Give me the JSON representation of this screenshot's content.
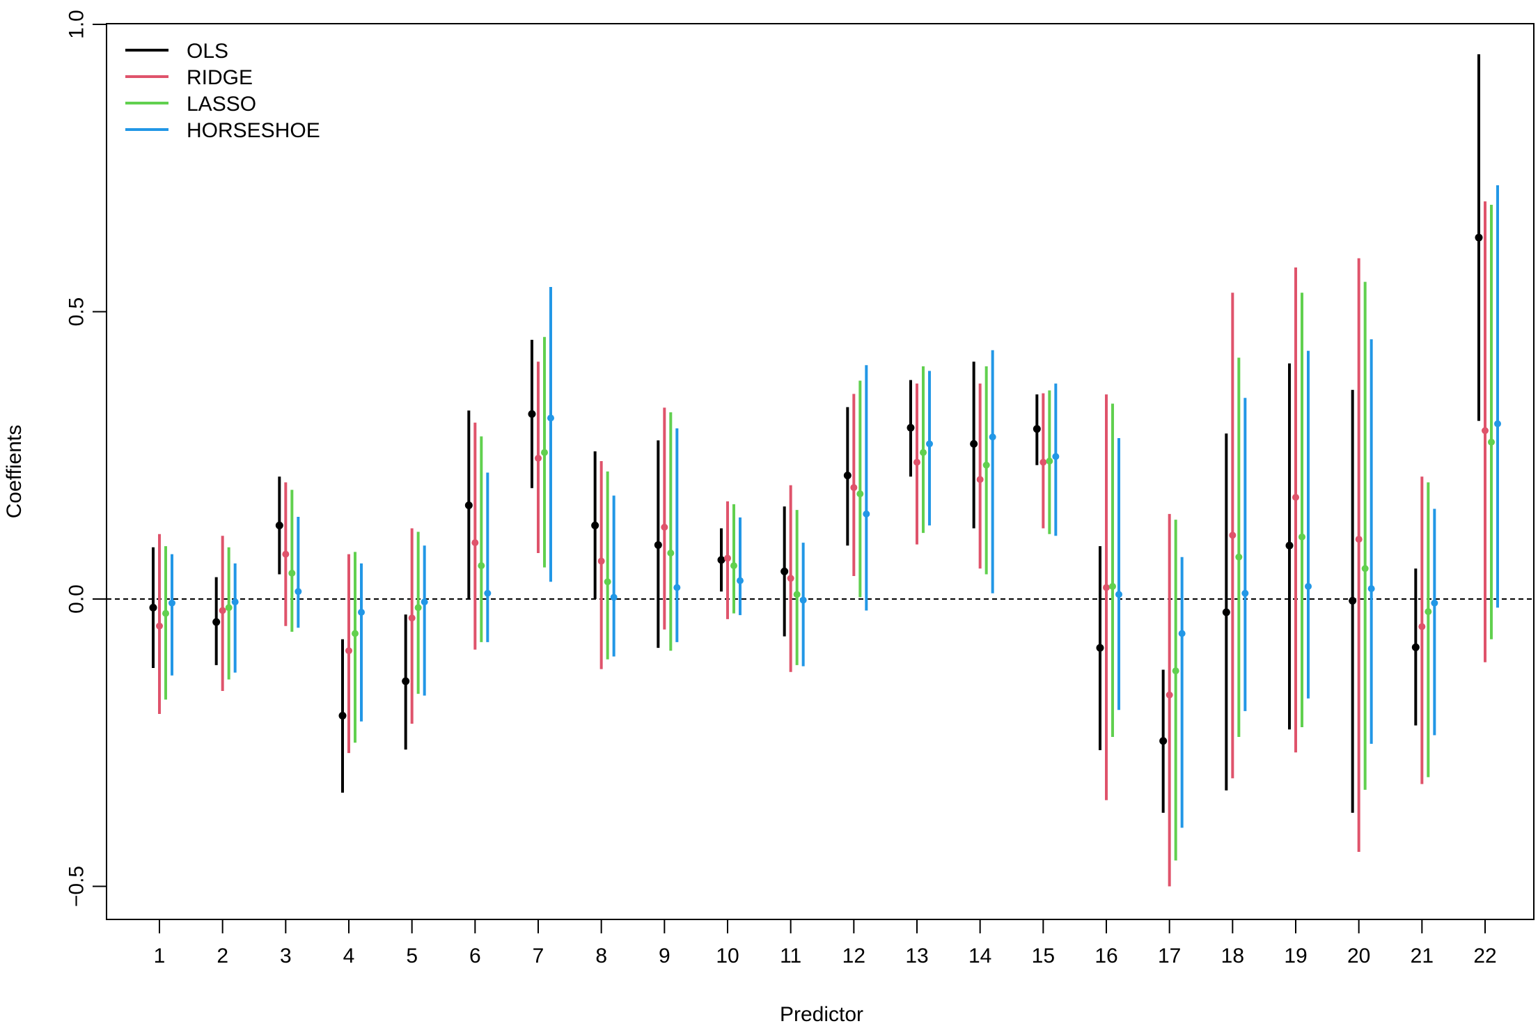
{
  "chart_data": {
    "type": "scatter",
    "subtype": "point-with-interval",
    "title": "",
    "xlabel": "Predictor",
    "ylabel": "Coeffients",
    "ylim": [
      -0.56,
      1.0
    ],
    "yticks": [
      -0.5,
      0.0,
      0.5,
      1.0
    ],
    "ytick_labels": [
      "−0.5",
      "0.0",
      "0.5",
      "1.0"
    ],
    "categories": [
      "1",
      "2",
      "3",
      "4",
      "5",
      "6",
      "7",
      "8",
      "9",
      "10",
      "11",
      "12",
      "13",
      "14",
      "15",
      "16",
      "17",
      "18",
      "19",
      "20",
      "21",
      "22"
    ],
    "reference_line": {
      "y": 0,
      "style": "dashed"
    },
    "grid": false,
    "legend": {
      "position": "top-left",
      "entries": [
        "OLS",
        "RIDGE",
        "LASSO",
        "HORSESHOE"
      ]
    },
    "series": [
      {
        "name": "OLS",
        "color": "#000000",
        "est": [
          -0.015,
          -0.04,
          0.128,
          -0.203,
          -0.143,
          0.163,
          0.322,
          0.128,
          0.094,
          0.068,
          0.048,
          0.215,
          0.298,
          0.27,
          0.296,
          -0.085,
          -0.247,
          -0.023,
          0.093,
          -0.003,
          -0.084,
          0.629
        ],
        "low": [
          -0.12,
          -0.115,
          0.043,
          -0.337,
          -0.262,
          0.0,
          0.193,
          0.0,
          -0.085,
          0.013,
          -0.065,
          0.093,
          0.213,
          0.123,
          0.233,
          -0.263,
          -0.372,
          -0.333,
          -0.227,
          -0.372,
          -0.22,
          0.31
        ],
        "high": [
          0.09,
          0.038,
          0.213,
          -0.07,
          -0.027,
          0.328,
          0.451,
          0.257,
          0.276,
          0.123,
          0.161,
          0.334,
          0.381,
          0.413,
          0.356,
          0.092,
          -0.123,
          0.288,
          0.41,
          0.364,
          0.053,
          0.948
        ]
      },
      {
        "name": "RIDGE",
        "color": "#DF536B",
        "est": [
          -0.047,
          -0.02,
          0.078,
          -0.09,
          -0.033,
          0.098,
          0.245,
          0.066,
          0.125,
          0.071,
          0.036,
          0.194,
          0.238,
          0.208,
          0.238,
          0.02,
          -0.167,
          0.111,
          0.177,
          0.104,
          -0.048,
          0.293
        ],
        "low": [
          -0.2,
          -0.16,
          -0.047,
          -0.268,
          -0.217,
          -0.088,
          0.08,
          -0.122,
          -0.053,
          -0.035,
          -0.127,
          0.04,
          0.095,
          0.053,
          0.123,
          -0.35,
          -0.5,
          -0.312,
          -0.267,
          -0.44,
          -0.322,
          -0.11
        ],
        "high": [
          0.113,
          0.11,
          0.203,
          0.078,
          0.123,
          0.307,
          0.413,
          0.24,
          0.333,
          0.17,
          0.198,
          0.357,
          0.375,
          0.375,
          0.358,
          0.356,
          0.148,
          0.533,
          0.577,
          0.593,
          0.213,
          0.692
        ]
      },
      {
        "name": "LASSO",
        "color": "#61D04F",
        "est": [
          -0.025,
          -0.015,
          0.045,
          -0.06,
          -0.015,
          0.058,
          0.255,
          0.03,
          0.08,
          0.058,
          0.008,
          0.183,
          0.255,
          0.233,
          0.24,
          0.022,
          -0.125,
          0.073,
          0.108,
          0.053,
          -0.022,
          0.273
        ],
        "low": [
          -0.175,
          -0.14,
          -0.057,
          -0.25,
          -0.165,
          -0.075,
          0.055,
          -0.105,
          -0.09,
          -0.025,
          -0.115,
          0.003,
          0.115,
          0.043,
          0.113,
          -0.24,
          -0.455,
          -0.24,
          -0.223,
          -0.332,
          -0.31,
          -0.07
        ],
        "high": [
          0.092,
          0.09,
          0.19,
          0.082,
          0.117,
          0.283,
          0.456,
          0.222,
          0.325,
          0.165,
          0.155,
          0.38,
          0.405,
          0.405,
          0.363,
          0.34,
          0.138,
          0.42,
          0.533,
          0.552,
          0.203,
          0.686
        ]
      },
      {
        "name": "HORSESHOE",
        "color": "#2297E6",
        "est": [
          -0.007,
          -0.005,
          0.013,
          -0.023,
          -0.005,
          0.01,
          0.315,
          0.003,
          0.02,
          0.032,
          -0.002,
          0.148,
          0.27,
          0.282,
          0.248,
          0.008,
          -0.06,
          0.01,
          0.022,
          0.018,
          -0.007,
          0.305
        ],
        "low": [
          -0.133,
          -0.128,
          -0.05,
          -0.213,
          -0.168,
          -0.075,
          0.03,
          -0.1,
          -0.075,
          -0.028,
          -0.117,
          -0.02,
          0.128,
          0.01,
          0.11,
          -0.193,
          -0.398,
          -0.195,
          -0.173,
          -0.252,
          -0.237,
          -0.015
        ],
        "high": [
          0.078,
          0.062,
          0.143,
          0.062,
          0.093,
          0.22,
          0.543,
          0.18,
          0.297,
          0.142,
          0.098,
          0.407,
          0.397,
          0.433,
          0.375,
          0.28,
          0.073,
          0.35,
          0.432,
          0.452,
          0.157,
          0.72
        ]
      }
    ]
  }
}
